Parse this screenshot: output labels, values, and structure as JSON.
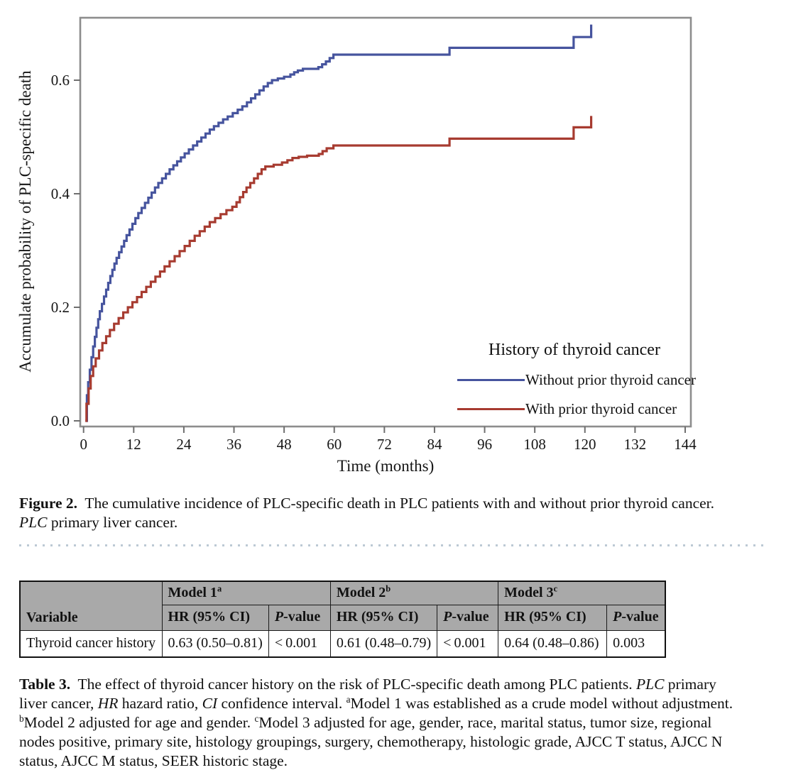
{
  "chart_data": {
    "type": "step_line",
    "xlabel": "Time (months)",
    "ylabel": "Accumulate probability of PLC-specific death",
    "xticks": [
      0,
      12,
      24,
      36,
      48,
      60,
      72,
      84,
      96,
      108,
      120,
      132,
      144
    ],
    "yticks": [
      "0.0",
      "0.2",
      "0.4",
      "0.6"
    ],
    "xlim": [
      -0.8,
      145.3
    ],
    "ylim": [
      -0.01,
      0.71
    ],
    "grid": "off",
    "legend": {
      "title": "History of thyroid cancer",
      "position": "inside lower right"
    },
    "series": [
      {
        "name": "Without prior thyroid cancer",
        "color": "#46549E",
        "points": [
          [
            0.5,
            0
          ],
          [
            0.8,
            0.045
          ],
          [
            1.1,
            0.068
          ],
          [
            1.5,
            0.09
          ],
          [
            1.9,
            0.112
          ],
          [
            2.3,
            0.131
          ],
          [
            2.7,
            0.148
          ],
          [
            3.1,
            0.164
          ],
          [
            3.5,
            0.179
          ],
          [
            3.9,
            0.193
          ],
          [
            4.4,
            0.206
          ],
          [
            4.9,
            0.219
          ],
          [
            5.4,
            0.231
          ],
          [
            5.9,
            0.243
          ],
          [
            6.4,
            0.255
          ],
          [
            6.9,
            0.266
          ],
          [
            7.4,
            0.277
          ],
          [
            7.9,
            0.287
          ],
          [
            8.5,
            0.297
          ],
          [
            9.1,
            0.307
          ],
          [
            9.7,
            0.317
          ],
          [
            10.3,
            0.327
          ],
          [
            11,
            0.337
          ],
          [
            11.7,
            0.347
          ],
          [
            12.4,
            0.357
          ],
          [
            13.1,
            0.366
          ],
          [
            13.9,
            0.375
          ],
          [
            14.7,
            0.384
          ],
          [
            15.5,
            0.393
          ],
          [
            16.3,
            0.402
          ],
          [
            17.1,
            0.411
          ],
          [
            17.9,
            0.419
          ],
          [
            18.8,
            0.427
          ],
          [
            19.7,
            0.435
          ],
          [
            20.6,
            0.443
          ],
          [
            21.5,
            0.45
          ],
          [
            22.4,
            0.457
          ],
          [
            23.3,
            0.464
          ],
          [
            24.2,
            0.471
          ],
          [
            25.2,
            0.478
          ],
          [
            26.2,
            0.485
          ],
          [
            27.2,
            0.492
          ],
          [
            28.2,
            0.499
          ],
          [
            29.2,
            0.506
          ],
          [
            30.2,
            0.513
          ],
          [
            31.2,
            0.519
          ],
          [
            32.3,
            0.525
          ],
          [
            33.4,
            0.531
          ],
          [
            34.5,
            0.536
          ],
          [
            35.7,
            0.542
          ],
          [
            36.9,
            0.548
          ],
          [
            38,
            0.554
          ],
          [
            39.1,
            0.561
          ],
          [
            40.1,
            0.568
          ],
          [
            41.1,
            0.575
          ],
          [
            42.1,
            0.582
          ],
          [
            43.1,
            0.589
          ],
          [
            44.1,
            0.595
          ],
          [
            45.1,
            0.6
          ],
          [
            46.5,
            0.603
          ],
          [
            48,
            0.606
          ],
          [
            49.5,
            0.61
          ],
          [
            50.4,
            0.614
          ],
          [
            51.3,
            0.617
          ],
          [
            52.5,
            0.62
          ],
          [
            56.2,
            0.623
          ],
          [
            57.1,
            0.628
          ],
          [
            58,
            0.633
          ],
          [
            58.9,
            0.639
          ],
          [
            59.8,
            0.645
          ],
          [
            87.6,
            0.657
          ],
          [
            117.3,
            0.676
          ],
          [
            121.5,
            0.698
          ]
        ]
      },
      {
        "name": "With prior thyroid cancer",
        "color": "#A73B30",
        "points": [
          [
            0.4,
            0
          ],
          [
            0.7,
            0.03
          ],
          [
            1.2,
            0.057
          ],
          [
            1.7,
            0.079
          ],
          [
            2.3,
            0.096
          ],
          [
            2.9,
            0.11
          ],
          [
            3.7,
            0.124
          ],
          [
            4.5,
            0.137
          ],
          [
            5.4,
            0.149
          ],
          [
            6.3,
            0.16
          ],
          [
            7.3,
            0.171
          ],
          [
            8.4,
            0.181
          ],
          [
            9.5,
            0.191
          ],
          [
            10.6,
            0.2
          ],
          [
            11.7,
            0.209
          ],
          [
            12.8,
            0.218
          ],
          [
            13.9,
            0.227
          ],
          [
            15,
            0.236
          ],
          [
            16.1,
            0.245
          ],
          [
            17.2,
            0.254
          ],
          [
            18.3,
            0.263
          ],
          [
            19.4,
            0.272
          ],
          [
            20.6,
            0.281
          ],
          [
            21.8,
            0.29
          ],
          [
            23,
            0.299
          ],
          [
            24.2,
            0.308
          ],
          [
            25.4,
            0.317
          ],
          [
            26.6,
            0.326
          ],
          [
            27.8,
            0.334
          ],
          [
            29,
            0.342
          ],
          [
            30.2,
            0.35
          ],
          [
            31.5,
            0.357
          ],
          [
            32.8,
            0.364
          ],
          [
            34.2,
            0.371
          ],
          [
            35.6,
            0.377
          ],
          [
            36.6,
            0.385
          ],
          [
            37.4,
            0.394
          ],
          [
            38.2,
            0.403
          ],
          [
            39,
            0.411
          ],
          [
            39.9,
            0.419
          ],
          [
            40.8,
            0.427
          ],
          [
            41.7,
            0.435
          ],
          [
            42.6,
            0.443
          ],
          [
            43.5,
            0.448
          ],
          [
            45.5,
            0.451
          ],
          [
            47.5,
            0.455
          ],
          [
            48.8,
            0.459
          ],
          [
            50,
            0.463
          ],
          [
            51.5,
            0.465
          ],
          [
            53.5,
            0.467
          ],
          [
            56.3,
            0.47
          ],
          [
            57.2,
            0.475
          ],
          [
            58.2,
            0.48
          ],
          [
            59.8,
            0.485
          ],
          [
            87.6,
            0.497
          ],
          [
            117.3,
            0.517
          ],
          [
            121.5,
            0.537
          ]
        ]
      }
    ]
  },
  "figure_caption": {
    "parts": [
      {
        "text": "Figure 2."
      },
      {
        "text": "  The cumulative incidence of PLC-specific death in PLC patients with and without prior thyroid cancer. "
      },
      {
        "text": "PLC"
      },
      {
        "text": " primary liver cancer."
      }
    ]
  },
  "table": {
    "col_headers": {
      "variable": "Variable",
      "models": [
        {
          "label": "Model 1",
          "sup": "a"
        },
        {
          "label": "Model 2",
          "sup": "b"
        },
        {
          "label": "Model 3",
          "sup": "c"
        }
      ],
      "hr": "HR (95% CI)",
      "p_prefix": "P",
      "p_suffix": "-value"
    },
    "rows": [
      {
        "variable": "Thyroid cancer history",
        "values": [
          "0.63 (0.50–0.81)",
          "< 0.001",
          "0.61 (0.48–0.79)",
          "< 0.001",
          "0.64 (0.48–0.86)",
          "0.003"
        ]
      }
    ]
  },
  "table_caption": {
    "parts": [
      {
        "text": "Table 3."
      },
      {
        "text": "  The effect of thyroid cancer history on the risk of PLC-specific death among PLC patients. "
      },
      {
        "text": "PLC"
      },
      {
        "text": " primary liver cancer, "
      },
      {
        "text": "HR"
      },
      {
        "text": " hazard ratio, "
      },
      {
        "text": "CI"
      },
      {
        "text": " confidence interval. "
      },
      {
        "text": "a"
      },
      {
        "text": "Model 1 was established as a crude model without adjustment. "
      },
      {
        "text": "b"
      },
      {
        "text": "Model 2 adjusted for age and gender. "
      },
      {
        "text": "c"
      },
      {
        "text": "Model 3 adjusted for age, gender, race, marital status, tumor size, regional nodes positive, primary site, histology groupings, surgery, chemotherapy, histologic grade, AJCC T status, AJCC N status, AJCC M status, SEER historic stage."
      }
    ]
  }
}
